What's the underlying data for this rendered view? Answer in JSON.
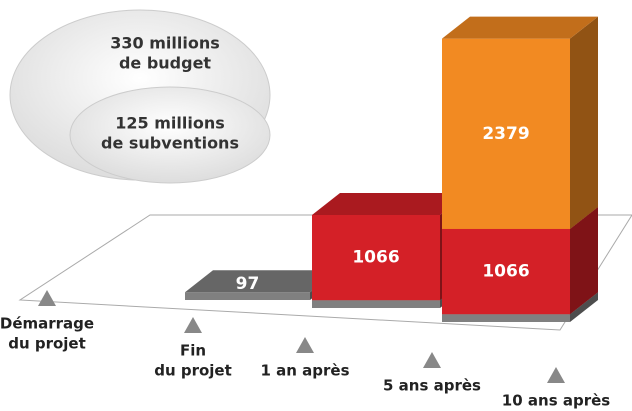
{
  "chart_data": {
    "type": "bar3d",
    "annotations": [
      "330 millions",
      "de budget",
      "125 millions",
      "de subventions"
    ],
    "categories": [
      [
        "Démarrage",
        "du projet"
      ],
      [
        "Fin",
        "du projet"
      ],
      [
        "1 an après"
      ],
      [
        "5 ans après"
      ],
      [
        "10 ans après"
      ]
    ],
    "series": [
      {
        "color": "#808080",
        "values": [
          null,
          97,
          97,
          97,
          null
        ]
      },
      {
        "color": "#d42027",
        "values": [
          null,
          null,
          1066,
          1066,
          null
        ]
      },
      {
        "color": "#f28a22",
        "values": [
          null,
          null,
          null,
          2379,
          null
        ]
      }
    ]
  }
}
